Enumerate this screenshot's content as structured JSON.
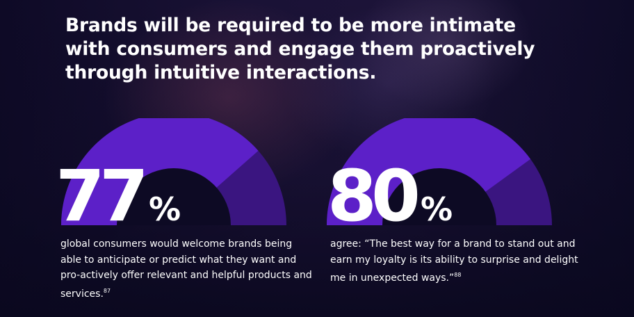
{
  "headline": "Brands will be required to be more intimate with consumers and engage them proactively through intuitive interactions.",
  "stats": [
    {
      "value": "77",
      "unit": "%",
      "fraction": 0.77,
      "text": "global consumers would welcome brands being able to anticipate or predict what they want and pro-actively offer relevant and helpful products and services.",
      "footnote": "87"
    },
    {
      "value": "80",
      "unit": "%",
      "fraction": 0.8,
      "text": "agree: “The best way for a brand to stand out and earn my loyalty is its ability to surprise and delight me in unexpected ways.”",
      "footnote": "88"
    }
  ],
  "colors": {
    "accent": "#5c20c8",
    "accent_dark": "#3a1580",
    "inner": "#0d0a24",
    "text": "#ffffff"
  }
}
